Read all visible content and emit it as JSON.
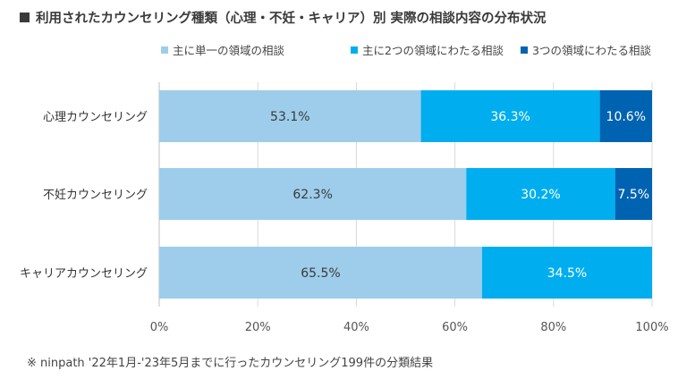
{
  "chart_data": {
    "type": "bar",
    "orientation": "horizontal",
    "stacked": true,
    "title": "■ 利用されたカウンセリング種類（心理・不妊・キャリア）別 実際の相談内容の分布状況",
    "title_text": "利用されたカウンセリング種類（心理・不妊・キャリア）別 実際の相談内容の分布状況",
    "categories": [
      "心理カウンセリング",
      "不妊カウンセリング",
      "キャリアカウンセリング"
    ],
    "series": [
      {
        "name": "主に単一の領域の相談",
        "color": "#9dcdeb",
        "label_color": "#3a3a3a",
        "values": [
          53.1,
          62.3,
          65.5
        ],
        "labels": [
          "53.1%",
          "62.3%",
          "65.5%"
        ]
      },
      {
        "name": "主に2つの領域にわたる相談",
        "color": "#00aeef",
        "label_color": "#ffffff",
        "values": [
          36.3,
          30.2,
          34.5
        ],
        "labels": [
          "36.3%",
          "30.2%",
          "34.5%"
        ]
      },
      {
        "name": "3つの領域にわたる相談",
        "color": "#0063b1",
        "label_color": "#ffffff",
        "values": [
          10.6,
          7.5,
          0
        ],
        "labels": [
          "10.6%",
          "7.5%",
          ""
        ]
      }
    ],
    "xlim": [
      0,
      100
    ],
    "xticks": [
      "0%",
      "20%",
      "40%",
      "60%",
      "80%",
      "100%"
    ],
    "grid": true,
    "legend": "top"
  },
  "footnote": "※ ninpath '22年1月-'23年5月までに行ったカウンセリング199件の分類結果"
}
